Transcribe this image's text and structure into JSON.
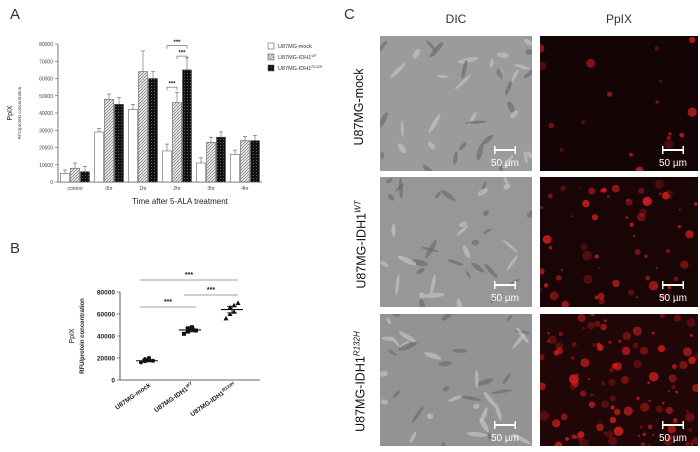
{
  "panel_letters": {
    "a": "A",
    "b": "B",
    "c": "C"
  },
  "chart_data": [
    {
      "type": "bar",
      "ylabel": "PpIX",
      "ylabel2": "RFU/protein concentration",
      "xlabel": "Time after 5-ALA treatment",
      "categories": [
        "control",
        "0hr",
        "1hr",
        "2hr",
        "3hr",
        "4hr"
      ],
      "yticks": [
        "0",
        "10000",
        "20000",
        "30000",
        "40000",
        "50000",
        "60000",
        "70000",
        "80000"
      ],
      "ylim": [
        0,
        80000
      ],
      "legend_position": "top-right",
      "series": [
        {
          "name": "U87MG-mock",
          "legend_sup": "",
          "values": [
            5000,
            29000,
            42000,
            18000,
            11000,
            16000
          ],
          "errors": [
            2000,
            2000,
            3000,
            4000,
            3000,
            2500
          ],
          "color": "#ffffff",
          "pattern": "none"
        },
        {
          "name": "U87MG-IDH1",
          "legend_sup": "WT",
          "values": [
            8000,
            48000,
            64000,
            46000,
            23000,
            24000
          ],
          "errors": [
            3000,
            3000,
            12000,
            6000,
            3000,
            2500
          ],
          "color": "#cfcfcf",
          "pattern": "hatch"
        },
        {
          "name": "U87MG-IDH1",
          "legend_sup": "R132H",
          "values": [
            6000,
            45000,
            60000,
            65000,
            26000,
            24000
          ],
          "errors": [
            3000,
            4000,
            4000,
            7000,
            3000,
            3000
          ],
          "color": "#222222",
          "pattern": "dots"
        }
      ],
      "significance": [
        "***",
        "***",
        "***"
      ]
    },
    {
      "type": "scatter",
      "ylabel": "PpIX",
      "ylabel2": "RFU/protein concentration",
      "yticks": [
        "0",
        "20000",
        "40000",
        "60000",
        "80000"
      ],
      "ylim": [
        0,
        80000
      ],
      "categories": [
        {
          "name": "U87MG-mock",
          "sup": ""
        },
        {
          "name": "U87MG-IDH1",
          "sup": "WT"
        },
        {
          "name": "U87MG-IDH1",
          "sup": "R132H"
        }
      ],
      "series": [
        {
          "values": [
            16000,
            17000,
            18000,
            19000,
            20000,
            17500
          ],
          "mean": 17500,
          "sem": 1000,
          "marker": "circle"
        },
        {
          "values": [
            42000,
            44000,
            46000,
            47000,
            48000,
            45000
          ],
          "mean": 45500,
          "sem": 1800,
          "marker": "square"
        },
        {
          "values": [
            56000,
            60000,
            62000,
            66000,
            68000,
            70000
          ],
          "mean": 64000,
          "sem": 3000,
          "marker": "triangle"
        }
      ],
      "significance": [
        "***",
        "***",
        "***"
      ]
    }
  ],
  "micrographs": {
    "col_headers": [
      "DIC",
      "PpIX"
    ],
    "rows": [
      {
        "label": "U87MG-mock",
        "sup": ""
      },
      {
        "label": "U87MG-IDH1",
        "sup": "WT"
      },
      {
        "label": "U87MG-IDH1",
        "sup": "R132H"
      }
    ],
    "scale_bar": "50 µm",
    "dic_color": "#9a9a9a",
    "ppix_color": "#d42020"
  }
}
